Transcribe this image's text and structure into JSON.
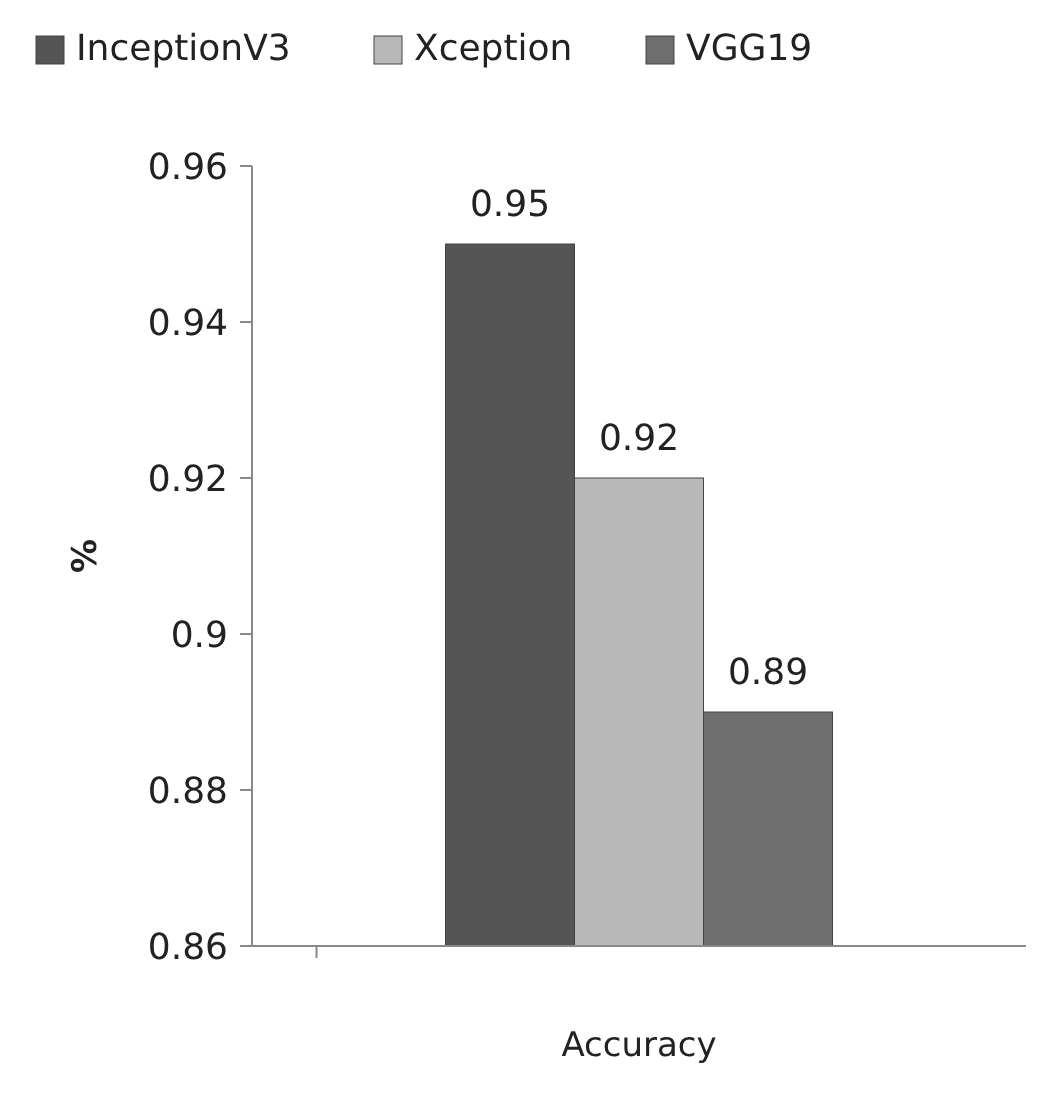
{
  "chart_data": {
    "type": "bar",
    "ylabel": "%",
    "xlabel": "Accuracy",
    "categories": [
      null
    ],
    "series": [
      {
        "name": "InceptionV3",
        "color": "#555555",
        "values": [
          0.95
        ]
      },
      {
        "name": "Xception",
        "color": "#b8b8b8",
        "values": [
          0.92
        ]
      },
      {
        "name": "VGG19",
        "color": "#6e6e6e",
        "values": [
          0.89
        ]
      }
    ],
    "ylim": [
      0.86,
      0.96
    ],
    "yticks": [
      0.86,
      0.88,
      0.9,
      0.92,
      0.94,
      0.96
    ],
    "data_labels": true,
    "legend": "top",
    "grid": false
  }
}
